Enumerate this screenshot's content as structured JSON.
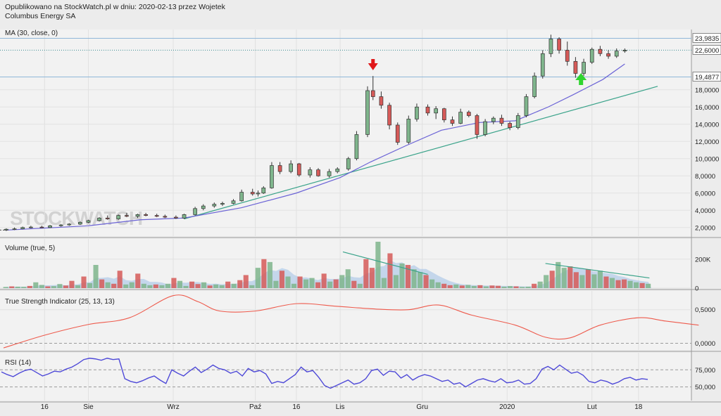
{
  "header": {
    "line1": "Opublikowano na StockWatch.pl w dniu: 2020-02-13 przez Wojetek",
    "line2": "Columbus Energy SA"
  },
  "watermark": "STOCKWATCH",
  "colors": {
    "up": "#7fb58c",
    "down": "#d65a58",
    "ma": "#6b63d6",
    "trend": "#3aa38a",
    "tsi": "#ee5a4c",
    "rsi": "#4e49d8",
    "vol_ma": "#9fbfe6",
    "arrow_down": "#e0181a",
    "arrow_up": "#2fd52f"
  },
  "chart_data": [
    {
      "type": "candlestick",
      "panel": "price",
      "label": "MA (30, close, 0)",
      "ylim": [
        1.0,
        25.0
      ],
      "y_ticks": [
        "2,0000",
        "4,0000",
        "6,0000",
        "8,0000",
        "10,0000",
        "12,0000",
        "14,0000",
        "16,0000",
        "18,0000"
      ],
      "price_labels": [
        {
          "text": "23,9835",
          "value": 23.98,
          "line": "solid"
        },
        {
          "text": "22,6000",
          "value": 22.6,
          "line": "dotted"
        },
        {
          "text": "19,4877",
          "value": 19.49,
          "line": "solid"
        }
      ],
      "x_ticks": [
        {
          "label": "16",
          "date": "2019-07-16"
        },
        {
          "label": "Sie",
          "date": "2019-08-01"
        },
        {
          "label": "Wrz",
          "date": "2019-09-01"
        },
        {
          "label": "Paź",
          "date": "2019-10-01"
        },
        {
          "label": "16",
          "date": "2019-10-16"
        },
        {
          "label": "Lis",
          "date": "2019-11-01"
        },
        {
          "label": "Gru",
          "date": "2019-12-01"
        },
        {
          "label": "2020",
          "date": "2020-01-01"
        },
        {
          "label": "Lut",
          "date": "2020-02-01"
        },
        {
          "label": "18",
          "date": "2020-02-18"
        }
      ],
      "candles": [
        {
          "date": "2019-07-02",
          "o": 1.7,
          "h": 1.9,
          "l": 1.6,
          "c": 1.8
        },
        {
          "date": "2019-07-05",
          "o": 1.8,
          "h": 2.0,
          "l": 1.7,
          "c": 1.85
        },
        {
          "date": "2019-07-08",
          "o": 1.85,
          "h": 2.1,
          "l": 1.8,
          "c": 2.0
        },
        {
          "date": "2019-07-11",
          "o": 2.0,
          "h": 2.2,
          "l": 1.9,
          "c": 2.05
        },
        {
          "date": "2019-07-15",
          "o": 2.05,
          "h": 2.2,
          "l": 1.95,
          "c": 2.0
        },
        {
          "date": "2019-07-18",
          "o": 2.0,
          "h": 2.3,
          "l": 1.95,
          "c": 2.2
        },
        {
          "date": "2019-07-22",
          "o": 2.2,
          "h": 2.4,
          "l": 2.1,
          "c": 2.3
        },
        {
          "date": "2019-07-25",
          "o": 2.3,
          "h": 2.5,
          "l": 2.2,
          "c": 2.4
        },
        {
          "date": "2019-07-29",
          "o": 2.4,
          "h": 2.7,
          "l": 2.3,
          "c": 2.6
        },
        {
          "date": "2019-08-01",
          "o": 2.6,
          "h": 2.9,
          "l": 2.5,
          "c": 2.8
        },
        {
          "date": "2019-08-05",
          "o": 2.8,
          "h": 3.2,
          "l": 2.7,
          "c": 3.1
        },
        {
          "date": "2019-08-08",
          "o": 3.1,
          "h": 3.4,
          "l": 2.9,
          "c": 3.0
        },
        {
          "date": "2019-08-12",
          "o": 3.0,
          "h": 3.5,
          "l": 2.9,
          "c": 3.4
        },
        {
          "date": "2019-08-15",
          "o": 3.4,
          "h": 3.7,
          "l": 3.2,
          "c": 3.3
        },
        {
          "date": "2019-08-19",
          "o": 3.3,
          "h": 3.6,
          "l": 3.1,
          "c": 3.5
        },
        {
          "date": "2019-08-22",
          "o": 3.5,
          "h": 3.7,
          "l": 3.3,
          "c": 3.4
        },
        {
          "date": "2019-08-26",
          "o": 3.4,
          "h": 3.6,
          "l": 3.2,
          "c": 3.3
        },
        {
          "date": "2019-08-29",
          "o": 3.3,
          "h": 3.5,
          "l": 3.1,
          "c": 3.2
        },
        {
          "date": "2019-09-02",
          "o": 3.2,
          "h": 3.4,
          "l": 3.0,
          "c": 3.1
        },
        {
          "date": "2019-09-05",
          "o": 3.1,
          "h": 3.6,
          "l": 3.0,
          "c": 3.5
        },
        {
          "date": "2019-09-09",
          "o": 3.5,
          "h": 4.4,
          "l": 3.4,
          "c": 4.2
        },
        {
          "date": "2019-09-12",
          "o": 4.2,
          "h": 4.7,
          "l": 4.0,
          "c": 4.5
        },
        {
          "date": "2019-09-16",
          "o": 4.5,
          "h": 4.9,
          "l": 4.3,
          "c": 4.7
        },
        {
          "date": "2019-09-19",
          "o": 4.7,
          "h": 5.0,
          "l": 4.5,
          "c": 4.8
        },
        {
          "date": "2019-09-23",
          "o": 4.8,
          "h": 5.3,
          "l": 4.7,
          "c": 5.1
        },
        {
          "date": "2019-09-26",
          "o": 5.1,
          "h": 6.4,
          "l": 5.0,
          "c": 6.1
        },
        {
          "date": "2019-09-30",
          "o": 6.1,
          "h": 6.5,
          "l": 5.7,
          "c": 5.9
        },
        {
          "date": "2019-10-02",
          "o": 5.9,
          "h": 6.3,
          "l": 5.6,
          "c": 6.0
        },
        {
          "date": "2019-10-04",
          "o": 6.0,
          "h": 6.8,
          "l": 5.9,
          "c": 6.6
        },
        {
          "date": "2019-10-07",
          "o": 6.6,
          "h": 9.6,
          "l": 6.5,
          "c": 9.2
        },
        {
          "date": "2019-10-10",
          "o": 9.2,
          "h": 9.6,
          "l": 8.2,
          "c": 8.5
        },
        {
          "date": "2019-10-14",
          "o": 8.5,
          "h": 9.8,
          "l": 8.3,
          "c": 9.4
        },
        {
          "date": "2019-10-17",
          "o": 9.4,
          "h": 9.5,
          "l": 7.9,
          "c": 8.1
        },
        {
          "date": "2019-10-21",
          "o": 8.1,
          "h": 9.0,
          "l": 7.8,
          "c": 8.7
        },
        {
          "date": "2019-10-24",
          "o": 8.7,
          "h": 8.9,
          "l": 7.9,
          "c": 8.0
        },
        {
          "date": "2019-10-28",
          "o": 8.0,
          "h": 8.8,
          "l": 7.8,
          "c": 8.5
        },
        {
          "date": "2019-10-31",
          "o": 8.5,
          "h": 9.0,
          "l": 8.3,
          "c": 8.8
        },
        {
          "date": "2019-11-04",
          "o": 8.8,
          "h": 10.2,
          "l": 8.6,
          "c": 10.0
        },
        {
          "date": "2019-11-07",
          "o": 10.0,
          "h": 13.2,
          "l": 9.8,
          "c": 12.8
        },
        {
          "date": "2019-11-11",
          "o": 12.8,
          "h": 18.4,
          "l": 12.5,
          "c": 17.9
        },
        {
          "date": "2019-11-13",
          "o": 17.9,
          "h": 19.6,
          "l": 16.8,
          "c": 17.2
        },
        {
          "date": "2019-11-16",
          "o": 17.2,
          "h": 17.8,
          "l": 15.8,
          "c": 16.2
        },
        {
          "date": "2019-11-19",
          "o": 16.2,
          "h": 16.5,
          "l": 13.4,
          "c": 13.9
        },
        {
          "date": "2019-11-22",
          "o": 13.9,
          "h": 14.2,
          "l": 11.6,
          "c": 11.9
        },
        {
          "date": "2019-11-26",
          "o": 11.9,
          "h": 15.0,
          "l": 11.7,
          "c": 14.6
        },
        {
          "date": "2019-11-29",
          "o": 14.6,
          "h": 16.4,
          "l": 14.3,
          "c": 16.0
        },
        {
          "date": "2019-12-03",
          "o": 16.0,
          "h": 16.3,
          "l": 15.0,
          "c": 15.3
        },
        {
          "date": "2019-12-06",
          "o": 15.3,
          "h": 16.1,
          "l": 14.6,
          "c": 15.8
        },
        {
          "date": "2019-12-09",
          "o": 15.8,
          "h": 15.9,
          "l": 14.2,
          "c": 14.5
        },
        {
          "date": "2019-12-12",
          "o": 14.5,
          "h": 14.9,
          "l": 13.8,
          "c": 14.1
        },
        {
          "date": "2019-12-15",
          "o": 14.1,
          "h": 15.8,
          "l": 14.0,
          "c": 15.4
        },
        {
          "date": "2019-12-18",
          "o": 15.4,
          "h": 15.6,
          "l": 14.8,
          "c": 15.0
        },
        {
          "date": "2019-12-21",
          "o": 15.0,
          "h": 15.2,
          "l": 12.3,
          "c": 12.8
        },
        {
          "date": "2019-12-24",
          "o": 12.8,
          "h": 14.6,
          "l": 12.6,
          "c": 14.3
        },
        {
          "date": "2019-12-27",
          "o": 14.3,
          "h": 14.9,
          "l": 14.0,
          "c": 14.7
        },
        {
          "date": "2019-12-30",
          "o": 14.7,
          "h": 15.1,
          "l": 13.8,
          "c": 14.1
        },
        {
          "date": "2020-01-02",
          "o": 14.1,
          "h": 14.3,
          "l": 13.3,
          "c": 13.6
        },
        {
          "date": "2020-01-05",
          "o": 13.6,
          "h": 15.3,
          "l": 13.4,
          "c": 15.0
        },
        {
          "date": "2020-01-08",
          "o": 15.0,
          "h": 17.5,
          "l": 14.8,
          "c": 17.2
        },
        {
          "date": "2020-01-11",
          "o": 17.2,
          "h": 20.0,
          "l": 17.0,
          "c": 19.6
        },
        {
          "date": "2020-01-14",
          "o": 19.6,
          "h": 22.6,
          "l": 19.3,
          "c": 22.2
        },
        {
          "date": "2020-01-17",
          "o": 22.2,
          "h": 24.4,
          "l": 21.8,
          "c": 23.9
        },
        {
          "date": "2020-01-20",
          "o": 23.9,
          "h": 24.1,
          "l": 22.2,
          "c": 22.6
        },
        {
          "date": "2020-01-23",
          "o": 22.6,
          "h": 23.6,
          "l": 20.8,
          "c": 21.3
        },
        {
          "date": "2020-01-26",
          "o": 21.3,
          "h": 21.8,
          "l": 19.4,
          "c": 19.9
        },
        {
          "date": "2020-01-29",
          "o": 19.9,
          "h": 21.6,
          "l": 19.6,
          "c": 21.2
        },
        {
          "date": "2020-02-01",
          "o": 21.2,
          "h": 22.9,
          "l": 21.0,
          "c": 22.7
        },
        {
          "date": "2020-02-04",
          "o": 22.7,
          "h": 23.1,
          "l": 21.9,
          "c": 22.2
        },
        {
          "date": "2020-02-07",
          "o": 22.2,
          "h": 22.6,
          "l": 21.6,
          "c": 21.9
        },
        {
          "date": "2020-02-10",
          "o": 21.9,
          "h": 22.8,
          "l": 21.7,
          "c": 22.5
        },
        {
          "date": "2020-02-13",
          "o": 22.5,
          "h": 22.8,
          "l": 22.3,
          "c": 22.6
        }
      ],
      "ma": [
        {
          "date": "2019-07-02",
          "v": 1.7
        },
        {
          "date": "2019-08-01",
          "v": 2.2
        },
        {
          "date": "2019-08-20",
          "v": 2.9
        },
        {
          "date": "2019-09-05",
          "v": 3.1
        },
        {
          "date": "2019-09-26",
          "v": 4.3
        },
        {
          "date": "2019-10-16",
          "v": 6.0
        },
        {
          "date": "2019-11-01",
          "v": 7.8
        },
        {
          "date": "2019-11-12",
          "v": 9.6
        },
        {
          "date": "2019-11-25",
          "v": 11.5
        },
        {
          "date": "2019-12-08",
          "v": 13.3
        },
        {
          "date": "2019-12-22",
          "v": 14.2
        },
        {
          "date": "2020-01-04",
          "v": 14.4
        },
        {
          "date": "2020-01-16",
          "v": 16.0
        },
        {
          "date": "2020-01-25",
          "v": 17.4
        },
        {
          "date": "2020-02-05",
          "v": 19.2
        },
        {
          "date": "2020-02-13",
          "v": 21.0
        }
      ],
      "trendline": [
        {
          "date": "2019-09-05",
          "v": 3.0
        },
        {
          "date": "2020-02-25",
          "v": 18.4
        }
      ],
      "markers": [
        {
          "date": "2019-11-13",
          "type": "arrow_down"
        },
        {
          "date": "2020-01-28",
          "type": "arrow_up"
        }
      ]
    },
    {
      "type": "bar",
      "panel": "volume",
      "label": "Volume (true, 5)",
      "y_ticks": [
        "200K",
        "0"
      ],
      "ylim": [
        0,
        320000
      ],
      "values": [
        8000,
        12000,
        10000,
        9000,
        15000,
        40000,
        22000,
        12000,
        14000,
        28000,
        18000,
        50000,
        20000,
        80000,
        35000,
        160000,
        60000,
        40000,
        30000,
        120000,
        25000,
        40000,
        100000,
        30000,
        20000,
        25000,
        20000,
        30000,
        70000,
        50000,
        15000,
        45000,
        28000,
        40000,
        18000,
        25000,
        20000,
        45000,
        30000,
        55000,
        90000,
        20000,
        140000,
        200000,
        180000,
        50000,
        120000,
        80000,
        30000,
        80000,
        60000,
        70000,
        40000,
        100000,
        45000,
        60000,
        90000,
        130000,
        50000,
        30000,
        200000,
        140000,
        320000,
        70000,
        240000,
        90000,
        170000,
        160000,
        130000,
        110000,
        90000,
        60000,
        40000,
        30000,
        20000,
        25000,
        18000,
        22000,
        15000,
        20000,
        12000,
        18000,
        16000,
        10000,
        14000,
        12000,
        8000,
        10000,
        30000,
        45000,
        90000,
        120000,
        180000,
        140000,
        150000,
        110000,
        90000,
        130000,
        95000,
        120000,
        80000,
        70000,
        55000,
        60000,
        50000,
        40000,
        35000,
        30000
      ],
      "trendlines": [
        [
          {
            "date": "2019-11-02",
            "v": 250000
          },
          {
            "date": "2019-12-03",
            "v": 95000
          }
        ],
        [
          {
            "date": "2020-01-15",
            "v": 170000
          },
          {
            "date": "2020-02-22",
            "v": 70000
          }
        ]
      ]
    },
    {
      "type": "line",
      "panel": "tsi",
      "label": "True Strength Indicator (25, 13, 13)",
      "y_ticks": [
        "0,5000",
        "0,0000"
      ],
      "ylim": [
        -0.1,
        0.78
      ],
      "points": [
        {
          "date": "2019-07-01",
          "v": -0.07
        },
        {
          "date": "2019-07-16",
          "v": 0.12
        },
        {
          "date": "2019-08-01",
          "v": 0.28
        },
        {
          "date": "2019-08-16",
          "v": 0.38
        },
        {
          "date": "2019-09-01",
          "v": 0.71
        },
        {
          "date": "2019-09-10",
          "v": 0.62
        },
        {
          "date": "2019-09-18",
          "v": 0.48
        },
        {
          "date": "2019-10-01",
          "v": 0.48
        },
        {
          "date": "2019-10-16",
          "v": 0.59
        },
        {
          "date": "2019-10-31",
          "v": 0.55
        },
        {
          "date": "2019-11-14",
          "v": 0.51
        },
        {
          "date": "2019-11-26",
          "v": 0.5
        },
        {
          "date": "2019-12-07",
          "v": 0.57
        },
        {
          "date": "2019-12-19",
          "v": 0.42
        },
        {
          "date": "2020-01-04",
          "v": 0.27
        },
        {
          "date": "2020-01-15",
          "v": 0.09
        },
        {
          "date": "2020-01-24",
          "v": 0.08
        },
        {
          "date": "2020-02-04",
          "v": 0.27
        },
        {
          "date": "2020-02-18",
          "v": 0.38
        },
        {
          "date": "2020-02-28",
          "v": 0.33
        },
        {
          "date": "2020-03-11",
          "v": 0.27
        }
      ]
    },
    {
      "type": "line",
      "panel": "rsi",
      "label": "RSI (14)",
      "y_ticks": [
        "75,000",
        "50,000"
      ],
      "ylim": [
        30,
        100
      ],
      "points": [
        72,
        68,
        65,
        70,
        74,
        76,
        71,
        66,
        69,
        73,
        72,
        76,
        79,
        84,
        90,
        92,
        91,
        89,
        92,
        90,
        91,
        62,
        58,
        56,
        59,
        63,
        66,
        60,
        55,
        75,
        70,
        66,
        73,
        79,
        71,
        76,
        82,
        77,
        75,
        70,
        73,
        66,
        77,
        72,
        74,
        69,
        55,
        58,
        56,
        62,
        68,
        79,
        72,
        74,
        64,
        52,
        48,
        52,
        56,
        60,
        54,
        56,
        62,
        74,
        76,
        67,
        73,
        72,
        63,
        68,
        60,
        65,
        68,
        66,
        62,
        58,
        60,
        54,
        56,
        50,
        55,
        60,
        62,
        59,
        57,
        62,
        56,
        57,
        60,
        54,
        55,
        62,
        76,
        80,
        75,
        82,
        76,
        70,
        72,
        67,
        58,
        56,
        60,
        58,
        54,
        57,
        62,
        64,
        60,
        62,
        61
      ]
    }
  ]
}
